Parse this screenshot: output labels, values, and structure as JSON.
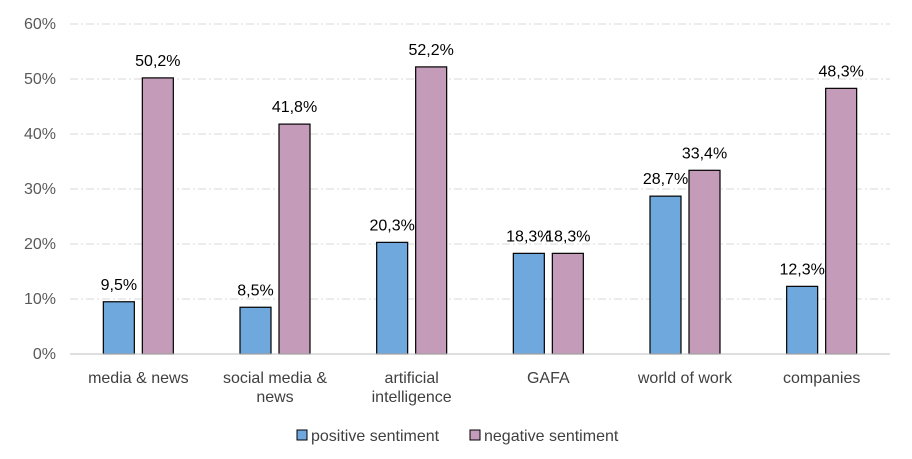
{
  "chart_data": {
    "type": "bar",
    "categories": [
      [
        "media & news"
      ],
      [
        "social media &",
        "news"
      ],
      [
        "artificial",
        "intelligence"
      ],
      [
        "GAFA"
      ],
      [
        "world of work"
      ],
      [
        "companies"
      ]
    ],
    "series": [
      {
        "name": "positive sentiment",
        "color": "#6fa8dc",
        "values": [
          9.5,
          8.5,
          20.3,
          18.3,
          28.7,
          12.3
        ],
        "labels": [
          "9,5%",
          "8,5%",
          "20,3%",
          "18,3%",
          "28,7%",
          "12,3%"
        ]
      },
      {
        "name": "negative sentiment",
        "color": "#c49cba",
        "values": [
          50.2,
          41.8,
          52.2,
          18.3,
          33.4,
          48.3
        ],
        "labels": [
          "50,2%",
          "41,8%",
          "52,2%",
          "18,3%",
          "33,4%",
          "48,3%"
        ]
      }
    ],
    "ylim": [
      0,
      60
    ],
    "yticks": [
      {
        "value": 0,
        "label": "0%"
      },
      {
        "value": 10,
        "label": "10%"
      },
      {
        "value": 20,
        "label": "20%"
      },
      {
        "value": 30,
        "label": "30%"
      },
      {
        "value": 40,
        "label": "40%"
      },
      {
        "value": 50,
        "label": "50%"
      },
      {
        "value": 60,
        "label": "60%"
      }
    ],
    "grid": true,
    "legend_position": "bottom",
    "title": "",
    "xlabel": "",
    "ylabel": ""
  }
}
